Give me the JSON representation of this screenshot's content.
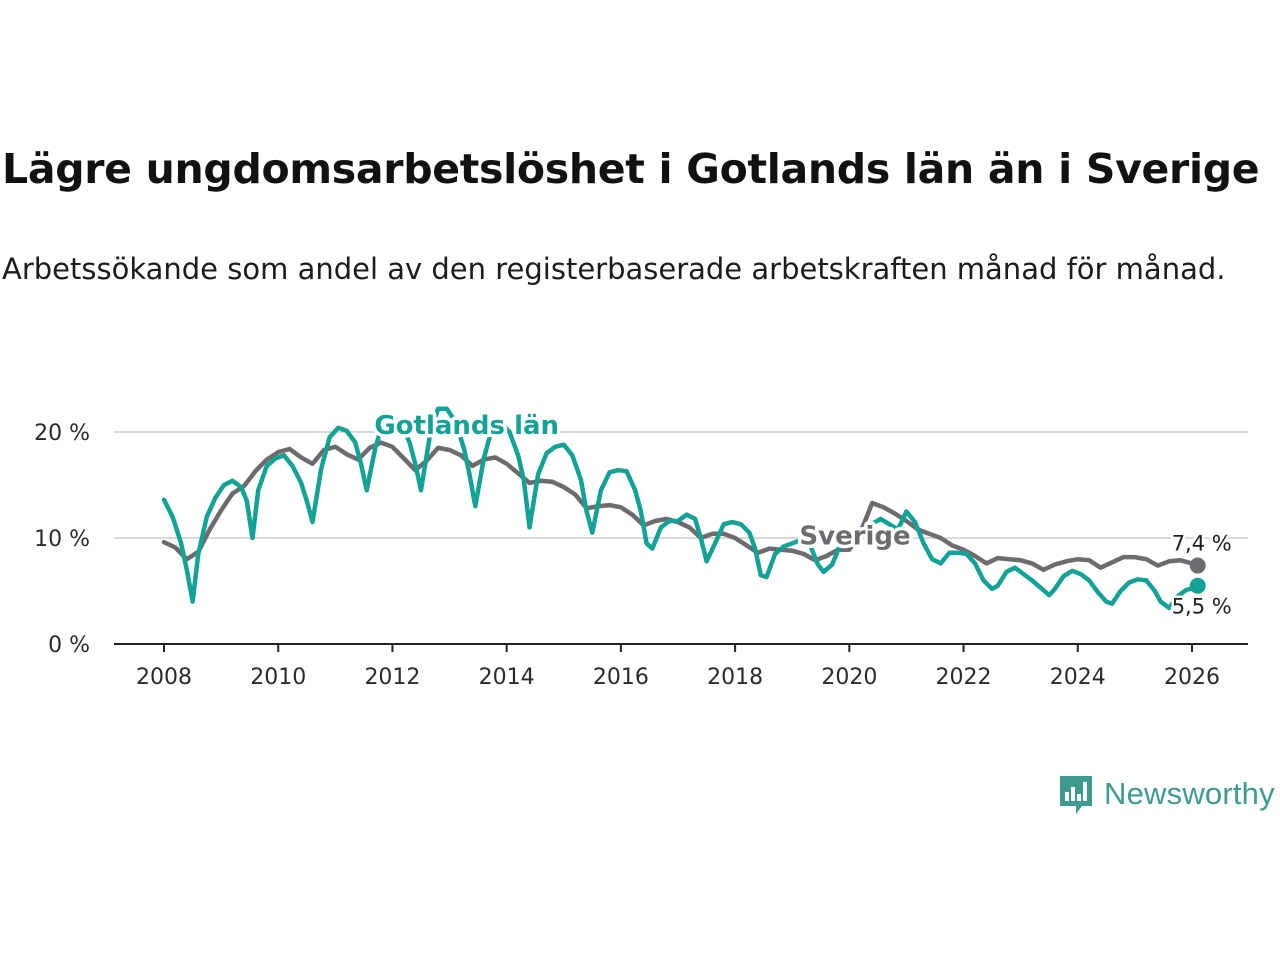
{
  "chart_data": {
    "type": "line",
    "title": "Lägre ungdomsarbetslöshet i Gotlands län än i Sverige",
    "subtitle": "Arbetssökande som andel av den registerbaserade arbetskraften månad för månad.",
    "xlabel": "",
    "ylabel": "",
    "xlim": [
      2007.9,
      2027.1
    ],
    "ylim": [
      0,
      22
    ],
    "x_ticks": [
      2008,
      2010,
      2012,
      2014,
      2016,
      2018,
      2020,
      2022,
      2024,
      2026
    ],
    "y_ticks": [
      {
        "value": 0,
        "label": "0 %"
      },
      {
        "value": 10,
        "label": "10 %"
      },
      {
        "value": 20,
        "label": "20 %"
      }
    ],
    "grid": true,
    "series": [
      {
        "name": "Sverige",
        "label": "Sverige",
        "color": "#6e6b70",
        "end_label": "7,4 %",
        "points": [
          [
            2008.0,
            9.6
          ],
          [
            2008.2,
            9.1
          ],
          [
            2008.4,
            8.0
          ],
          [
            2008.6,
            8.7
          ],
          [
            2008.8,
            10.8
          ],
          [
            2009.0,
            12.6
          ],
          [
            2009.2,
            14.2
          ],
          [
            2009.4,
            14.9
          ],
          [
            2009.6,
            16.3
          ],
          [
            2009.8,
            17.4
          ],
          [
            2010.0,
            18.1
          ],
          [
            2010.2,
            18.4
          ],
          [
            2010.4,
            17.6
          ],
          [
            2010.6,
            17.0
          ],
          [
            2010.8,
            18.3
          ],
          [
            2011.0,
            18.6
          ],
          [
            2011.2,
            17.9
          ],
          [
            2011.4,
            17.4
          ],
          [
            2011.6,
            18.5
          ],
          [
            2011.8,
            19.0
          ],
          [
            2012.0,
            18.6
          ],
          [
            2012.2,
            17.5
          ],
          [
            2012.4,
            16.4
          ],
          [
            2012.6,
            17.3
          ],
          [
            2012.8,
            18.5
          ],
          [
            2013.0,
            18.3
          ],
          [
            2013.2,
            17.8
          ],
          [
            2013.4,
            16.8
          ],
          [
            2013.6,
            17.4
          ],
          [
            2013.8,
            17.6
          ],
          [
            2014.0,
            17.0
          ],
          [
            2014.2,
            16.1
          ],
          [
            2014.4,
            15.2
          ],
          [
            2014.6,
            15.4
          ],
          [
            2014.8,
            15.3
          ],
          [
            2015.0,
            14.8
          ],
          [
            2015.2,
            14.1
          ],
          [
            2015.4,
            12.8
          ],
          [
            2015.6,
            13.0
          ],
          [
            2015.8,
            13.1
          ],
          [
            2016.0,
            12.9
          ],
          [
            2016.2,
            12.2
          ],
          [
            2016.4,
            11.2
          ],
          [
            2016.6,
            11.6
          ],
          [
            2016.8,
            11.8
          ],
          [
            2017.0,
            11.5
          ],
          [
            2017.2,
            11.0
          ],
          [
            2017.4,
            10.0
          ],
          [
            2017.6,
            10.4
          ],
          [
            2017.8,
            10.4
          ],
          [
            2018.0,
            10.0
          ],
          [
            2018.2,
            9.3
          ],
          [
            2018.4,
            8.6
          ],
          [
            2018.6,
            9.0
          ],
          [
            2018.8,
            8.9
          ],
          [
            2019.0,
            8.8
          ],
          [
            2019.2,
            8.5
          ],
          [
            2019.4,
            7.9
          ],
          [
            2019.6,
            8.3
          ],
          [
            2019.8,
            8.9
          ],
          [
            2020.0,
            8.9
          ],
          [
            2020.2,
            10.6
          ],
          [
            2020.4,
            13.3
          ],
          [
            2020.6,
            12.9
          ],
          [
            2020.8,
            12.3
          ],
          [
            2021.0,
            11.6
          ],
          [
            2021.2,
            10.8
          ],
          [
            2021.4,
            10.4
          ],
          [
            2021.6,
            10.0
          ],
          [
            2021.8,
            9.3
          ],
          [
            2022.0,
            8.9
          ],
          [
            2022.2,
            8.3
          ],
          [
            2022.4,
            7.6
          ],
          [
            2022.6,
            8.1
          ],
          [
            2022.8,
            8.0
          ],
          [
            2023.0,
            7.9
          ],
          [
            2023.2,
            7.6
          ],
          [
            2023.4,
            7.0
          ],
          [
            2023.6,
            7.5
          ],
          [
            2023.8,
            7.8
          ],
          [
            2024.0,
            8.0
          ],
          [
            2024.2,
            7.9
          ],
          [
            2024.4,
            7.2
          ],
          [
            2024.6,
            7.7
          ],
          [
            2024.8,
            8.2
          ],
          [
            2025.0,
            8.2
          ],
          [
            2025.2,
            8.0
          ],
          [
            2025.4,
            7.4
          ],
          [
            2025.6,
            7.8
          ],
          [
            2025.8,
            7.9
          ],
          [
            2026.0,
            7.6
          ],
          [
            2026.1,
            7.4
          ]
        ]
      },
      {
        "name": "Gotlands län",
        "label": "Gotlands län",
        "color": "#13a396",
        "end_label": "5,5 %",
        "points": [
          [
            2008.0,
            13.6
          ],
          [
            2008.15,
            12.0
          ],
          [
            2008.3,
            9.5
          ],
          [
            2008.4,
            7.0
          ],
          [
            2008.5,
            4.0
          ],
          [
            2008.6,
            8.5
          ],
          [
            2008.75,
            12.0
          ],
          [
            2008.9,
            13.8
          ],
          [
            2009.05,
            15.0
          ],
          [
            2009.2,
            15.4
          ],
          [
            2009.35,
            14.8
          ],
          [
            2009.45,
            13.5
          ],
          [
            2009.55,
            10.0
          ],
          [
            2009.65,
            14.5
          ],
          [
            2009.8,
            16.8
          ],
          [
            2009.95,
            17.5
          ],
          [
            2010.1,
            17.8
          ],
          [
            2010.25,
            16.8
          ],
          [
            2010.4,
            15.2
          ],
          [
            2010.5,
            13.5
          ],
          [
            2010.6,
            11.5
          ],
          [
            2010.75,
            16.5
          ],
          [
            2010.9,
            19.5
          ],
          [
            2011.05,
            20.4
          ],
          [
            2011.2,
            20.1
          ],
          [
            2011.35,
            19.0
          ],
          [
            2011.45,
            17.0
          ],
          [
            2011.55,
            14.5
          ],
          [
            2011.7,
            18.5
          ],
          [
            2011.85,
            21.2
          ],
          [
            2012.0,
            21.4
          ],
          [
            2012.15,
            20.8
          ],
          [
            2012.3,
            19.0
          ],
          [
            2012.4,
            17.0
          ],
          [
            2012.5,
            14.5
          ],
          [
            2012.65,
            19.5
          ],
          [
            2012.8,
            22.2
          ],
          [
            2012.95,
            22.2
          ],
          [
            2013.1,
            21.0
          ],
          [
            2013.25,
            18.5
          ],
          [
            2013.35,
            16.0
          ],
          [
            2013.45,
            13.0
          ],
          [
            2013.6,
            17.5
          ],
          [
            2013.75,
            20.5
          ],
          [
            2013.9,
            20.8
          ],
          [
            2014.05,
            20.0
          ],
          [
            2014.2,
            17.8
          ],
          [
            2014.3,
            15.5
          ],
          [
            2014.4,
            11.0
          ],
          [
            2014.55,
            16.0
          ],
          [
            2014.7,
            18.0
          ],
          [
            2014.85,
            18.6
          ],
          [
            2015.0,
            18.8
          ],
          [
            2015.15,
            17.8
          ],
          [
            2015.3,
            15.5
          ],
          [
            2015.4,
            12.5
          ],
          [
            2015.5,
            10.5
          ],
          [
            2015.65,
            14.5
          ],
          [
            2015.8,
            16.2
          ],
          [
            2015.95,
            16.4
          ],
          [
            2016.1,
            16.3
          ],
          [
            2016.25,
            14.5
          ],
          [
            2016.35,
            12.5
          ],
          [
            2016.45,
            9.5
          ],
          [
            2016.55,
            9.0
          ],
          [
            2016.7,
            11.0
          ],
          [
            2016.85,
            11.6
          ],
          [
            2017.0,
            11.6
          ],
          [
            2017.15,
            12.2
          ],
          [
            2017.3,
            11.8
          ],
          [
            2017.4,
            10.0
          ],
          [
            2017.5,
            7.8
          ],
          [
            2017.65,
            9.5
          ],
          [
            2017.8,
            11.3
          ],
          [
            2017.95,
            11.5
          ],
          [
            2018.1,
            11.3
          ],
          [
            2018.25,
            10.5
          ],
          [
            2018.35,
            9.0
          ],
          [
            2018.45,
            6.5
          ],
          [
            2018.55,
            6.3
          ],
          [
            2018.7,
            8.5
          ],
          [
            2018.85,
            9.2
          ],
          [
            2019.0,
            9.5
          ],
          [
            2019.15,
            9.8
          ],
          [
            2019.3,
            9.5
          ],
          [
            2019.45,
            7.5
          ],
          [
            2019.55,
            6.8
          ],
          [
            2019.7,
            7.5
          ],
          [
            2019.85,
            9.5
          ],
          [
            2020.0,
            10.2
          ],
          [
            2020.15,
            10.8
          ],
          [
            2020.3,
            11.0
          ],
          [
            2020.45,
            11.5
          ],
          [
            2020.55,
            11.8
          ],
          [
            2020.7,
            11.3
          ],
          [
            2020.85,
            10.8
          ],
          [
            2021.0,
            12.5
          ],
          [
            2021.15,
            11.5
          ],
          [
            2021.3,
            9.5
          ],
          [
            2021.45,
            8.0
          ],
          [
            2021.6,
            7.6
          ],
          [
            2021.75,
            8.6
          ],
          [
            2021.9,
            8.6
          ],
          [
            2022.05,
            8.5
          ],
          [
            2022.2,
            7.6
          ],
          [
            2022.35,
            6.0
          ],
          [
            2022.5,
            5.2
          ],
          [
            2022.6,
            5.5
          ],
          [
            2022.75,
            6.8
          ],
          [
            2022.9,
            7.2
          ],
          [
            2023.05,
            6.6
          ],
          [
            2023.2,
            6.0
          ],
          [
            2023.35,
            5.3
          ],
          [
            2023.5,
            4.6
          ],
          [
            2023.6,
            5.2
          ],
          [
            2023.75,
            6.4
          ],
          [
            2023.9,
            6.9
          ],
          [
            2024.05,
            6.6
          ],
          [
            2024.2,
            6.0
          ],
          [
            2024.35,
            4.9
          ],
          [
            2024.5,
            4.0
          ],
          [
            2024.6,
            3.8
          ],
          [
            2024.75,
            5.0
          ],
          [
            2024.9,
            5.8
          ],
          [
            2025.05,
            6.1
          ],
          [
            2025.2,
            6.0
          ],
          [
            2025.35,
            5.0
          ],
          [
            2025.45,
            4.0
          ],
          [
            2025.6,
            3.4
          ],
          [
            2025.75,
            4.5
          ],
          [
            2025.9,
            5.1
          ],
          [
            2026.05,
            5.3
          ],
          [
            2026.1,
            5.5
          ]
        ]
      }
    ],
    "annotations": [
      {
        "text": "Gotlands län",
        "series": "Gotlands län",
        "x": 2013.3,
        "y": 19.8
      },
      {
        "text": "Sverige",
        "series": "Sverige",
        "x": 2020.1,
        "y": 9.4
      }
    ]
  },
  "branding": {
    "name": "Newsworthy",
    "color": "#3d9b8f"
  }
}
